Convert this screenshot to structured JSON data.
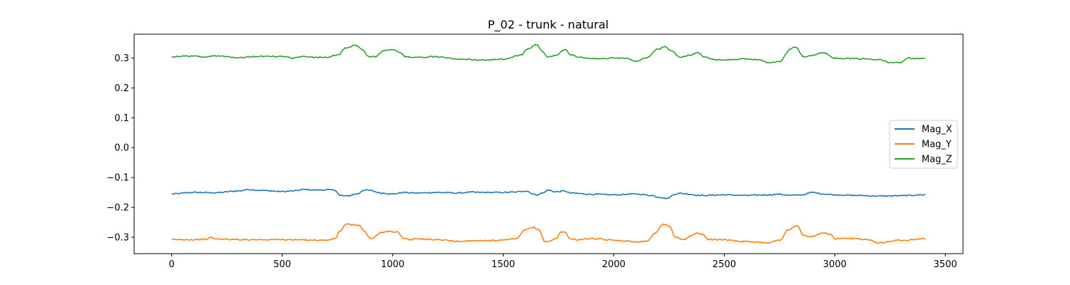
{
  "chart_data": {
    "type": "line",
    "title": "P_02 - trunk - natural",
    "xlabel": "",
    "ylabel": "",
    "xlim": [
      -170,
      3580
    ],
    "ylim": [
      -0.355,
      0.38
    ],
    "xticks": [
      0,
      500,
      1000,
      1500,
      2000,
      2500,
      3000,
      3500
    ],
    "xtick_labels": [
      "0",
      "500",
      "1000",
      "1500",
      "2000",
      "2500",
      "3000",
      "3500"
    ],
    "yticks": [
      -0.3,
      -0.2,
      -0.1,
      0.0,
      0.1,
      0.2,
      0.3
    ],
    "ytick_labels": [
      "−0.3",
      "−0.2",
      "−0.1",
      "0.0",
      "0.1",
      "0.2",
      "0.3"
    ],
    "grid": false,
    "legend_position": "center-right",
    "series": [
      {
        "name": "Mag_X",
        "color": "#1f77b4",
        "x": [
          0,
          100,
          200,
          300,
          350,
          400,
          500,
          550,
          600,
          650,
          700,
          740,
          760,
          790,
          840,
          870,
          890,
          950,
          1000,
          1050,
          1100,
          1200,
          1300,
          1350,
          1400,
          1500,
          1550,
          1600,
          1650,
          1680,
          1700,
          1740,
          1780,
          1800,
          1900,
          2000,
          2100,
          2170,
          2200,
          2240,
          2280,
          2300,
          2400,
          2500,
          2600,
          2700,
          2750,
          2800,
          2850,
          2900,
          2950,
          3000,
          3100,
          3200,
          3300,
          3400,
          3410
        ],
        "y": [
          -0.155,
          -0.15,
          -0.151,
          -0.145,
          -0.14,
          -0.143,
          -0.147,
          -0.145,
          -0.14,
          -0.142,
          -0.141,
          -0.142,
          -0.16,
          -0.162,
          -0.155,
          -0.142,
          -0.143,
          -0.152,
          -0.155,
          -0.15,
          -0.152,
          -0.15,
          -0.152,
          -0.149,
          -0.15,
          -0.15,
          -0.149,
          -0.145,
          -0.158,
          -0.152,
          -0.142,
          -0.148,
          -0.145,
          -0.152,
          -0.156,
          -0.158,
          -0.155,
          -0.16,
          -0.165,
          -0.17,
          -0.155,
          -0.153,
          -0.16,
          -0.158,
          -0.16,
          -0.158,
          -0.156,
          -0.16,
          -0.158,
          -0.15,
          -0.155,
          -0.158,
          -0.16,
          -0.162,
          -0.161,
          -0.158,
          -0.157
        ]
      },
      {
        "name": "Mag_Y",
        "color": "#ff7f0e",
        "x": [
          0,
          100,
          150,
          180,
          200,
          300,
          400,
          500,
          600,
          700,
          740,
          760,
          790,
          850,
          870,
          900,
          950,
          980,
          1020,
          1050,
          1080,
          1100,
          1200,
          1300,
          1350,
          1400,
          1500,
          1560,
          1600,
          1640,
          1660,
          1690,
          1700,
          1740,
          1760,
          1780,
          1800,
          1830,
          1900,
          2000,
          2100,
          2150,
          2190,
          2220,
          2250,
          2280,
          2320,
          2350,
          2380,
          2400,
          2430,
          2500,
          2600,
          2700,
          2750,
          2790,
          2830,
          2860,
          2900,
          2950,
          2980,
          3000,
          3100,
          3150,
          3200,
          3300,
          3400,
          3410
        ],
        "y": [
          -0.308,
          -0.308,
          -0.307,
          -0.301,
          -0.306,
          -0.308,
          -0.308,
          -0.308,
          -0.309,
          -0.31,
          -0.305,
          -0.28,
          -0.257,
          -0.26,
          -0.28,
          -0.305,
          -0.285,
          -0.28,
          -0.282,
          -0.305,
          -0.309,
          -0.305,
          -0.308,
          -0.314,
          -0.312,
          -0.311,
          -0.31,
          -0.305,
          -0.275,
          -0.267,
          -0.275,
          -0.315,
          -0.314,
          -0.305,
          -0.283,
          -0.281,
          -0.305,
          -0.308,
          -0.305,
          -0.31,
          -0.315,
          -0.313,
          -0.285,
          -0.257,
          -0.262,
          -0.3,
          -0.308,
          -0.295,
          -0.285,
          -0.29,
          -0.308,
          -0.308,
          -0.315,
          -0.318,
          -0.31,
          -0.275,
          -0.262,
          -0.295,
          -0.298,
          -0.285,
          -0.29,
          -0.305,
          -0.305,
          -0.308,
          -0.318,
          -0.31,
          -0.305,
          -0.307
        ]
      },
      {
        "name": "Mag_Z",
        "color": "#2ca02c",
        "x": [
          0,
          100,
          150,
          200,
          300,
          400,
          500,
          550,
          600,
          650,
          700,
          750,
          790,
          830,
          860,
          890,
          920,
          960,
          1000,
          1030,
          1060,
          1100,
          1200,
          1300,
          1400,
          1500,
          1580,
          1610,
          1650,
          1680,
          1700,
          1740,
          1780,
          1810,
          1850,
          1900,
          2000,
          2050,
          2100,
          2150,
          2200,
          2230,
          2260,
          2300,
          2350,
          2380,
          2410,
          2450,
          2500,
          2600,
          2650,
          2700,
          2750,
          2800,
          2820,
          2860,
          2900,
          2950,
          3000,
          3100,
          3200,
          3250,
          3300,
          3330,
          3400,
          3410
        ],
        "y": [
          0.305,
          0.307,
          0.303,
          0.308,
          0.302,
          0.306,
          0.305,
          0.3,
          0.305,
          0.302,
          0.303,
          0.31,
          0.335,
          0.342,
          0.33,
          0.305,
          0.305,
          0.325,
          0.328,
          0.32,
          0.304,
          0.302,
          0.305,
          0.297,
          0.293,
          0.296,
          0.31,
          0.33,
          0.345,
          0.32,
          0.303,
          0.31,
          0.328,
          0.31,
          0.302,
          0.298,
          0.3,
          0.301,
          0.29,
          0.302,
          0.33,
          0.338,
          0.325,
          0.303,
          0.31,
          0.318,
          0.305,
          0.295,
          0.294,
          0.297,
          0.295,
          0.285,
          0.288,
          0.33,
          0.338,
          0.305,
          0.31,
          0.318,
          0.3,
          0.298,
          0.296,
          0.286,
          0.285,
          0.3,
          0.298,
          0.3
        ]
      }
    ]
  }
}
